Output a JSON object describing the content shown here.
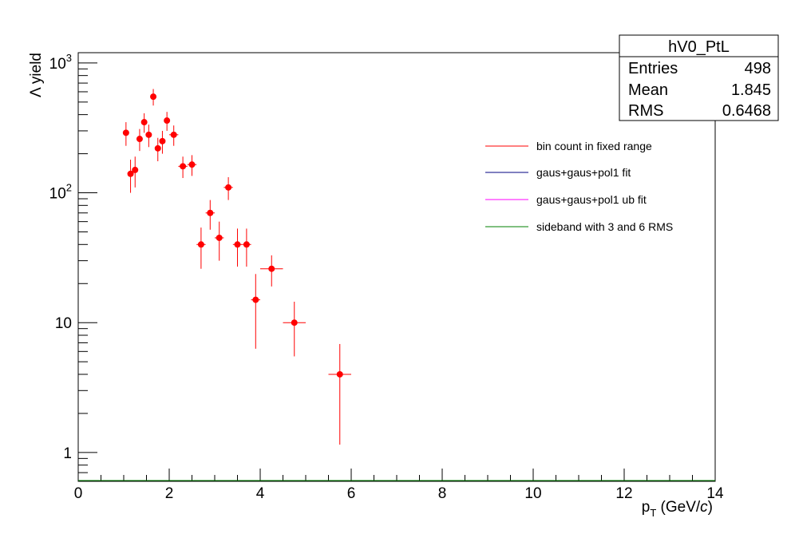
{
  "chart_data": {
    "type": "scatter",
    "title": "",
    "xlabel_main": "p",
    "xlabel_sub": "T",
    "xlabel_units": " (GeV/",
    "xlabel_units_italic": "c",
    "xlabel_units_close": ")",
    "ylabel": "Λ yield",
    "xlim": [
      0,
      14
    ],
    "ylim": [
      0.6,
      1200
    ],
    "y_scale": "log",
    "grid": false,
    "x_ticks": [
      "0",
      "2",
      "4",
      "6",
      "8",
      "10",
      "12",
      "14"
    ],
    "y_ticks": [
      {
        "base": "1",
        "exp": ""
      },
      {
        "base": "10",
        "exp": ""
      },
      {
        "base": "10",
        "exp": "2"
      },
      {
        "base": "10",
        "exp": "3"
      }
    ],
    "series": [
      {
        "name": "bin count in fixed range",
        "color": "#ff0000",
        "points": [
          {
            "x": 1.05,
            "y": 290,
            "xerr": 0.05,
            "yerr_lo": 60,
            "yerr_hi": 60
          },
          {
            "x": 1.15,
            "y": 140,
            "xerr": 0.05,
            "yerr_lo": 40,
            "yerr_hi": 40
          },
          {
            "x": 1.25,
            "y": 150,
            "xerr": 0.05,
            "yerr_lo": 40,
            "yerr_hi": 40
          },
          {
            "x": 1.35,
            "y": 260,
            "xerr": 0.05,
            "yerr_lo": 50,
            "yerr_hi": 50
          },
          {
            "x": 1.45,
            "y": 350,
            "xerr": 0.05,
            "yerr_lo": 60,
            "yerr_hi": 60
          },
          {
            "x": 1.55,
            "y": 280,
            "xerr": 0.05,
            "yerr_lo": 55,
            "yerr_hi": 55
          },
          {
            "x": 1.65,
            "y": 550,
            "xerr": 0.05,
            "yerr_lo": 80,
            "yerr_hi": 80
          },
          {
            "x": 1.75,
            "y": 220,
            "xerr": 0.05,
            "yerr_lo": 45,
            "yerr_hi": 45
          },
          {
            "x": 1.85,
            "y": 250,
            "xerr": 0.05,
            "yerr_lo": 50,
            "yerr_hi": 50
          },
          {
            "x": 1.95,
            "y": 360,
            "xerr": 0.05,
            "yerr_lo": 60,
            "yerr_hi": 60
          },
          {
            "x": 2.1,
            "y": 280,
            "xerr": 0.1,
            "yerr_lo": 50,
            "yerr_hi": 50
          },
          {
            "x": 2.3,
            "y": 160,
            "xerr": 0.1,
            "yerr_lo": 30,
            "yerr_hi": 30
          },
          {
            "x": 2.5,
            "y": 165,
            "xerr": 0.1,
            "yerr_lo": 30,
            "yerr_hi": 30
          },
          {
            "x": 2.7,
            "y": 40,
            "xerr": 0.1,
            "yerr_lo": 14,
            "yerr_hi": 14
          },
          {
            "x": 2.9,
            "y": 70,
            "xerr": 0.1,
            "yerr_lo": 18,
            "yerr_hi": 18
          },
          {
            "x": 3.1,
            "y": 45,
            "xerr": 0.1,
            "yerr_lo": 15,
            "yerr_hi": 15
          },
          {
            "x": 3.3,
            "y": 110,
            "xerr": 0.1,
            "yerr_lo": 22,
            "yerr_hi": 22
          },
          {
            "x": 3.5,
            "y": 40,
            "xerr": 0.1,
            "yerr_lo": 13,
            "yerr_hi": 13
          },
          {
            "x": 3.7,
            "y": 40,
            "xerr": 0.1,
            "yerr_lo": 13,
            "yerr_hi": 13
          },
          {
            "x": 3.9,
            "y": 15,
            "xerr": 0.1,
            "yerr_lo": 8.7,
            "yerr_hi": 8.7
          },
          {
            "x": 4.25,
            "y": 26,
            "xerr": 0.25,
            "yerr_lo": 7,
            "yerr_hi": 7
          },
          {
            "x": 4.75,
            "y": 10,
            "xerr": 0.25,
            "yerr_lo": 4.5,
            "yerr_hi": 4.5
          },
          {
            "x": 5.75,
            "y": 4,
            "xerr": 0.25,
            "yerr_lo": 2.85,
            "yerr_hi": 2.85
          }
        ]
      },
      {
        "name": "gaus+gaus+pol1 fit",
        "color": "#000080",
        "points": []
      },
      {
        "name": "gaus+gaus+pol1 ub fit",
        "color": "#ff00ff",
        "points": []
      },
      {
        "name": "sideband with 3 and 6 RMS",
        "color": "#008000",
        "points": []
      }
    ],
    "legend_placement": "right",
    "stats_box": {
      "title": "hV0_PtL",
      "rows": [
        {
          "label": "Entries",
          "value": "498"
        },
        {
          "label": "Mean",
          "value": "1.845"
        },
        {
          "label": "RMS",
          "value": "0.6468"
        }
      ]
    }
  }
}
